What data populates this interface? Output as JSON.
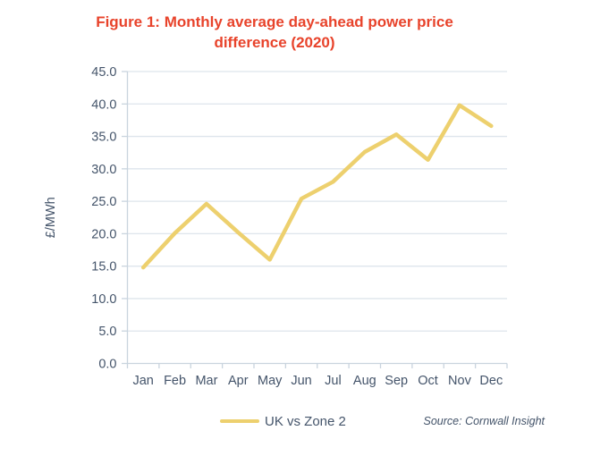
{
  "figure": {
    "title": "Figure 1: Monthly average day-ahead power price difference (2020)"
  },
  "legend": {
    "label": "UK vs Zone 2",
    "swatch_color": "#EDD06E"
  },
  "source": {
    "text": "Source: Cornwall Insight"
  },
  "chart_data": {
    "type": "line",
    "title": "Figure 1: Monthly average day-ahead power price difference (2020)",
    "categories": [
      "Jan",
      "Feb",
      "Mar",
      "Apr",
      "May",
      "Jun",
      "Jul",
      "Aug",
      "Sep",
      "Oct",
      "Nov",
      "Dec"
    ],
    "series": [
      {
        "name": "UK vs Zone 2",
        "values": [
          14.8,
          20.1,
          24.6,
          20.2,
          16.0,
          25.4,
          28.0,
          32.6,
          35.3,
          31.4,
          39.8,
          36.6
        ],
        "color": "#EDD06E"
      }
    ],
    "xlabel": "",
    "ylabel": "£/MWh",
    "ylim": [
      0,
      45
    ],
    "ytick_step": 5,
    "ytick_labels": [
      "0.0",
      "5.0",
      "10.0",
      "15.0",
      "20.0",
      "25.0",
      "30.0",
      "35.0",
      "40.0",
      "45.0"
    ],
    "grid": true,
    "legend_position": "bottom",
    "colors": {
      "title": "#E8432B",
      "axis_text": "#44546A",
      "gridline": "#DEE5EC",
      "axis_line": "#C9D4DE",
      "line": "#EDD06E"
    }
  }
}
